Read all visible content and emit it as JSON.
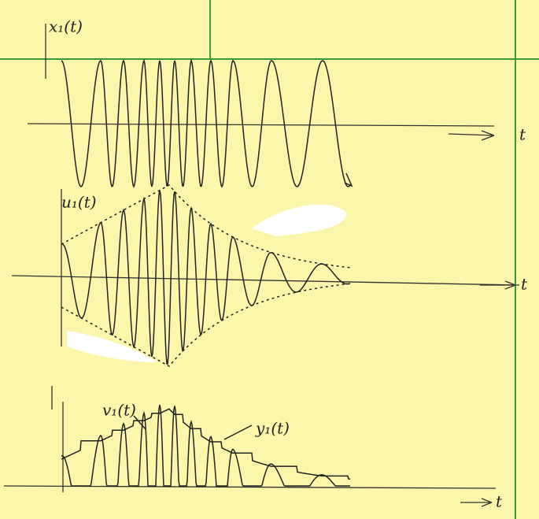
{
  "panels": [
    {
      "signal_label": "x₁(t)",
      "axis_label": "t"
    },
    {
      "signal_label": "u₁(t)",
      "axis_label": "t"
    },
    {
      "signal_labels": [
        "v₁(t)",
        "y₁(t)"
      ],
      "axis_label": "t"
    }
  ]
}
